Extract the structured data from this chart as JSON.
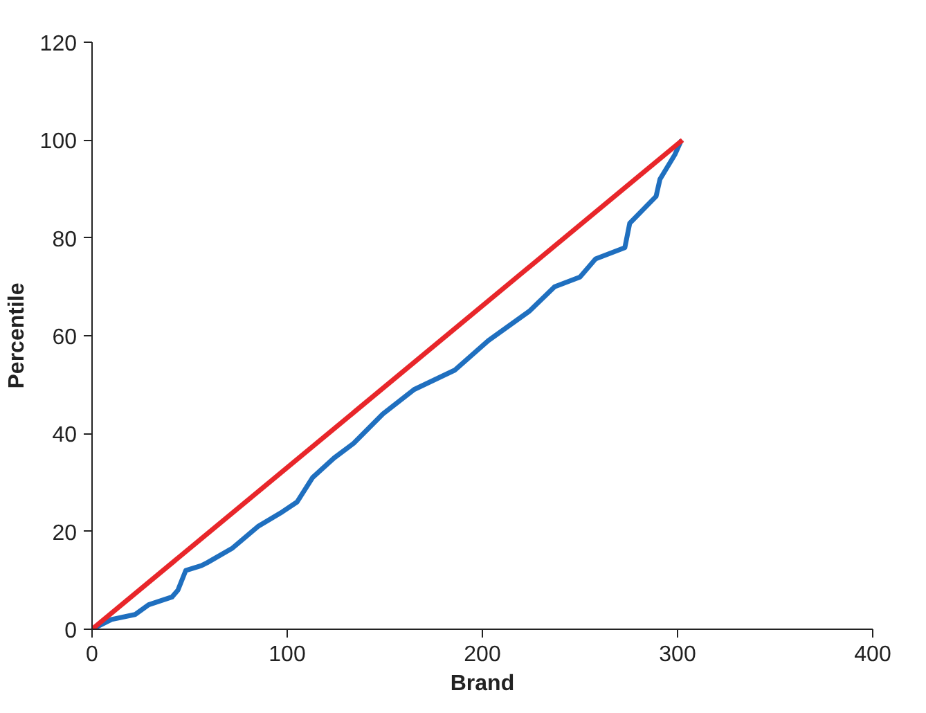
{
  "chart_data": {
    "type": "line",
    "xlabel": "Brand",
    "ylabel": "Percentile",
    "xlim": [
      0,
      400
    ],
    "ylim": [
      0,
      120
    ],
    "xticks": [
      0,
      100,
      200,
      300,
      400
    ],
    "yticks": [
      0,
      20,
      40,
      60,
      80,
      100,
      120
    ],
    "grid": false,
    "series": [
      {
        "color": "#1f6fbf",
        "x": [
          0,
          10,
          22,
          29,
          41,
          44,
          48,
          56,
          59,
          72,
          85,
          97.5,
          105,
          113,
          124,
          134,
          149,
          165,
          186,
          203,
          224,
          237,
          250,
          258,
          273,
          275.5,
          289,
          291,
          298.6,
          302
        ],
        "values": [
          0,
          2,
          3,
          5,
          6.6,
          8,
          12,
          13,
          13.6,
          16.6,
          21,
          24,
          26,
          31,
          35,
          38,
          44,
          49,
          53,
          59,
          65,
          70,
          72,
          75.7,
          78,
          83,
          88.5,
          92,
          97,
          100
        ]
      },
      {
        "color": "#e8262a",
        "x": [
          0,
          302.5
        ],
        "values": [
          0,
          100
        ]
      }
    ]
  }
}
